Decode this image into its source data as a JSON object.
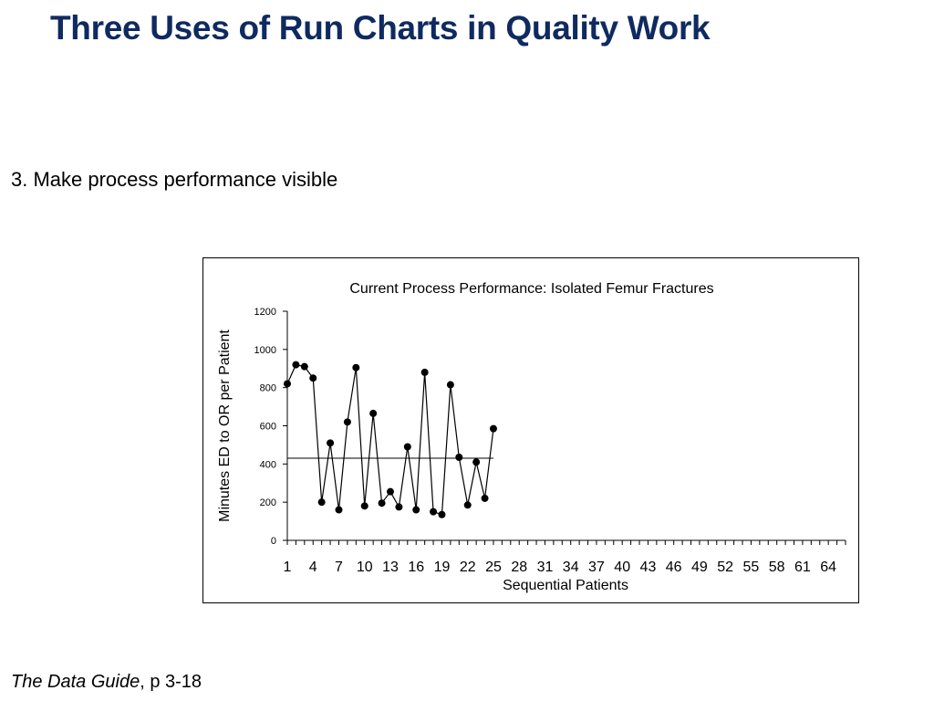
{
  "slide": {
    "title": "Three Uses of Run Charts in Quality Work",
    "bullet": "3. Make process performance visible",
    "footer_source": "The Data Guide",
    "footer_page": ", p 3-18"
  },
  "chart_data": {
    "type": "line",
    "title": "Current Process Performance: Isolated Femur Fractures",
    "xlabel": "Sequential Patients",
    "ylabel": "Minutes ED to OR per Patient",
    "ylim": [
      0,
      1200
    ],
    "yticks": [
      0,
      200,
      400,
      600,
      800,
      1000,
      1200
    ],
    "xlim": [
      1,
      66
    ],
    "xticks": [
      1,
      4,
      7,
      10,
      13,
      16,
      19,
      22,
      25,
      28,
      31,
      34,
      37,
      40,
      43,
      46,
      49,
      52,
      55,
      58,
      61,
      64
    ],
    "grid": false,
    "series": [
      {
        "x": [
          1,
          2,
          3,
          4,
          5,
          6,
          7,
          8,
          9,
          10,
          11,
          12,
          13,
          14,
          15,
          16,
          17,
          18,
          19,
          20,
          21,
          22,
          23,
          24,
          25
        ],
        "values": [
          820,
          920,
          910,
          850,
          200,
          510,
          160,
          620,
          905,
          180,
          665,
          195,
          255,
          175,
          490,
          160,
          880,
          150,
          135,
          815,
          435,
          185,
          410,
          220,
          585
        ],
        "color": "#000000",
        "marker": "circle"
      }
    ],
    "median_line": {
      "value": 430,
      "x_start": 1,
      "x_end": 25
    }
  }
}
